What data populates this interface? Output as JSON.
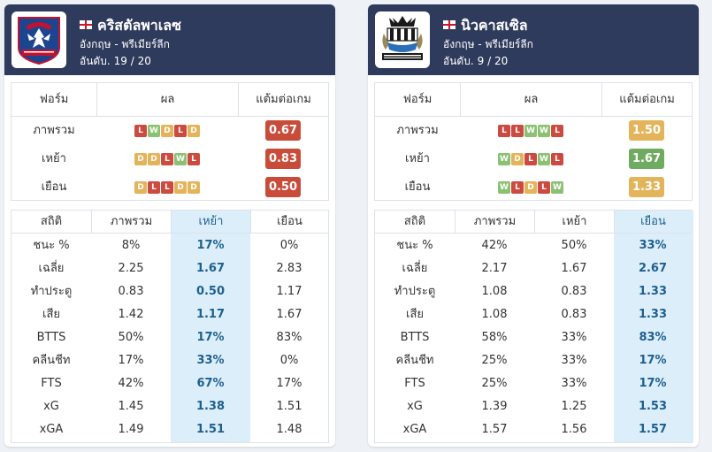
{
  "colors": {
    "header_bg": "#2f3b5c",
    "highlight_col": "#dbeef9",
    "win": "#8bc173",
    "draw": "#e3b45a",
    "loss": "#cc4a3f"
  },
  "left": {
    "name": "คริสตัลพาเลซ",
    "league": "อังกฤษ - พรีเมียร์ลีก",
    "rank_label": "อันดับ.",
    "rank": "19 / 20",
    "logo_icon": "crystal-palace-eagle-crest",
    "form_headers": [
      "ฟอร์ม",
      "ผล",
      "แต้มต่อเกม"
    ],
    "form_rows": [
      {
        "label": "ภาพรวม",
        "results": [
          "L",
          "W",
          "D",
          "L",
          "D"
        ],
        "ppg": "0.67",
        "ppg_color": "red"
      },
      {
        "label": "เหย้า",
        "results": [
          "D",
          "D",
          "L",
          "W",
          "L"
        ],
        "ppg": "0.83",
        "ppg_color": "red"
      },
      {
        "label": "เยือน",
        "results": [
          "D",
          "L",
          "L",
          "D",
          "D"
        ],
        "ppg": "0.50",
        "ppg_color": "red"
      }
    ],
    "stats_headers": [
      "สถิติ",
      "ภาพรวม",
      "เหย้า",
      "เยือน"
    ],
    "highlight_col": 2,
    "stats_rows": [
      [
        "ชนะ %",
        "8%",
        "17%",
        "0%"
      ],
      [
        "เฉลี่ย",
        "2.25",
        "1.67",
        "2.83"
      ],
      [
        "ทำประตู",
        "0.83",
        "0.50",
        "1.17"
      ],
      [
        "เสีย",
        "1.42",
        "1.17",
        "1.67"
      ],
      [
        "BTTS",
        "50%",
        "17%",
        "83%"
      ],
      [
        "คลีนชีท",
        "17%",
        "33%",
        "0%"
      ],
      [
        "FTS",
        "42%",
        "67%",
        "17%"
      ],
      [
        "xG",
        "1.45",
        "1.38",
        "1.51"
      ],
      [
        "xGA",
        "1.49",
        "1.51",
        "1.48"
      ]
    ]
  },
  "right": {
    "name": "นิวคาสเซิล",
    "league": "อังกฤษ - พรีเมียร์ลีก",
    "rank_label": "อันดับ.",
    "rank": "9 / 20",
    "logo_icon": "newcastle-united-crest",
    "form_headers": [
      "ฟอร์ม",
      "ผล",
      "แต้มต่อเกม"
    ],
    "form_rows": [
      {
        "label": "ภาพรวม",
        "results": [
          "L",
          "L",
          "W",
          "W",
          "L"
        ],
        "ppg": "1.50",
        "ppg_color": "yellow"
      },
      {
        "label": "เหย้า",
        "results": [
          "W",
          "D",
          "L",
          "W",
          "L"
        ],
        "ppg": "1.67",
        "ppg_color": "green"
      },
      {
        "label": "เยือน",
        "results": [
          "W",
          "L",
          "D",
          "L",
          "W"
        ],
        "ppg": "1.33",
        "ppg_color": "yellow"
      }
    ],
    "stats_headers": [
      "สถิติ",
      "ภาพรวม",
      "เหย้า",
      "เยือน"
    ],
    "highlight_col": 3,
    "stats_rows": [
      [
        "ชนะ %",
        "42%",
        "50%",
        "33%"
      ],
      [
        "เฉลี่ย",
        "2.17",
        "1.67",
        "2.67"
      ],
      [
        "ทำประตู",
        "1.08",
        "0.83",
        "1.33"
      ],
      [
        "เสีย",
        "1.08",
        "0.83",
        "1.33"
      ],
      [
        "BTTS",
        "58%",
        "33%",
        "83%"
      ],
      [
        "คลีนชีท",
        "25%",
        "33%",
        "17%"
      ],
      [
        "FTS",
        "25%",
        "33%",
        "17%"
      ],
      [
        "xG",
        "1.39",
        "1.25",
        "1.53"
      ],
      [
        "xGA",
        "1.57",
        "1.56",
        "1.57"
      ]
    ]
  }
}
